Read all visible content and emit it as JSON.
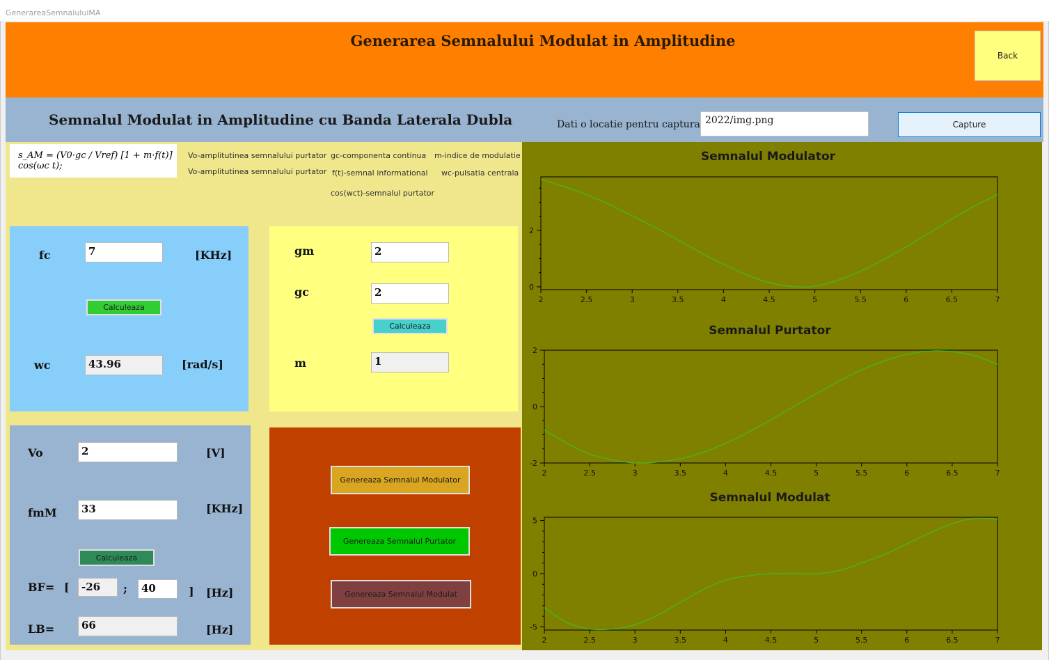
{
  "window": {
    "title": "GenerareaSemnaluluiMA"
  },
  "header": {
    "title": "Generarea Semnalului Modulat in Amplitudine",
    "back_label": "Back"
  },
  "subheader": {
    "title": "Semnalul Modulat in Amplitudine cu Banda Laterala Dubla",
    "capture_label": "Dati o locatie pentru captura",
    "capture_path": "2022/img.png",
    "capture_button": "Capture"
  },
  "formula": {
    "text": "s_AM = (V0·gc / Vref) [1 + m·f(t)] cos(ωc t);"
  },
  "legend": {
    "col1": [
      "Vo-amplitutinea semnalului purtator",
      "Vo-amplitutinea semnalului purtator"
    ],
    "col2": [
      "gc-componenta continua",
      "f(t)-semnal informational",
      "cos(wct)-semnalul purtator"
    ],
    "col3": [
      "m-indice de modulatie",
      "wc-pulsatia centrala"
    ]
  },
  "carrier_panel": {
    "fc_label": "fc",
    "fc_value": "7",
    "fc_unit": "[KHz]",
    "calc_label": "Calculeaza",
    "wc_label": "wc",
    "wc_value": "43.96",
    "wc_unit": "[rad/s]"
  },
  "mod_index_panel": {
    "gm_label": "gm",
    "gm_value": "2",
    "gc_label": "gc",
    "gc_value": "2",
    "calc_label": "Calculeaza",
    "m_label": "m",
    "m_value": "1"
  },
  "signal_panel": {
    "vo_label": "Vo",
    "vo_value": "2",
    "vo_unit": "[V]",
    "fmm_label": "fmM",
    "fmm_value": "33",
    "fmm_unit": "[KHz]",
    "calc_label": "Calculeaza",
    "bf_label": "BF=",
    "bf_open": "[",
    "bf_min": "-26",
    "bf_sep": ";",
    "bf_max": "40",
    "bf_close": "]",
    "bf_unit": "[Hz]",
    "lb_label": "LB=",
    "lb_value": "66",
    "lb_unit": "[Hz]"
  },
  "generate_panel": {
    "btn_modulator": "Genereaza Semnalul Modulator",
    "btn_purtator": "Genereaza Semnalul Purtator",
    "btn_modulat": "Genereaza Semnalul Modulat"
  },
  "colors": {
    "header": "#ff8000",
    "subbar": "#99b4d1",
    "left_bg": "#f0e68c",
    "plot_bg": "#808000",
    "line": "#4caf20",
    "btn_calc1": "#32cd32",
    "btn_calc2": "#48d1cc",
    "btn_calc3": "#2e8b57",
    "btn_gen1": "#daa520",
    "btn_gen2": "#00c800",
    "btn_gen3": "#804040"
  },
  "chart_data": [
    {
      "type": "line",
      "title": "Semnalul Modulator",
      "xlim": [
        2,
        7
      ],
      "ylim": [
        -0.1,
        3.9
      ],
      "xticks": [
        "2",
        "2.5",
        "3",
        "3.5",
        "4",
        "4.5",
        "5",
        "5.5",
        "6",
        "6.5",
        "7"
      ],
      "yticks": [
        {
          "v": 0,
          "l": "0"
        },
        {
          "v": 2,
          "l": "2"
        }
      ],
      "x": [
        2,
        2.25,
        2.5,
        2.75,
        3,
        3.25,
        3.5,
        3.75,
        4,
        4.25,
        4.5,
        4.75,
        5,
        5.25,
        5.5,
        5.75,
        6,
        6.25,
        6.5,
        6.75,
        7
      ],
      "y": [
        3.81,
        3.56,
        3.27,
        2.92,
        2.52,
        2.11,
        1.66,
        1.21,
        0.8,
        0.43,
        0.15,
        0.01,
        0.02,
        0.23,
        0.55,
        0.96,
        1.42,
        1.9,
        2.4,
        2.87,
        3.27
      ]
    },
    {
      "type": "line",
      "title": "Semnalul Purtator",
      "xlim": [
        2,
        7
      ],
      "ylim": [
        -2.0,
        2.0
      ],
      "xticks": [
        "2",
        "2.5",
        "3",
        "3.5",
        "4",
        "4.5",
        "5",
        "5.5",
        "6",
        "6.5",
        "7"
      ],
      "yticks": [
        {
          "v": -2,
          "l": "-2"
        },
        {
          "v": 0,
          "l": "0"
        },
        {
          "v": 2,
          "l": "2"
        }
      ],
      "x": [
        2,
        2.25,
        2.5,
        2.75,
        3,
        3.25,
        3.5,
        3.75,
        4,
        4.25,
        4.5,
        4.75,
        5,
        5.25,
        5.5,
        5.75,
        6,
        6.25,
        6.5,
        6.75,
        7
      ],
      "y": [
        -0.83,
        -1.3,
        -1.69,
        -1.89,
        -2.0,
        -1.97,
        -1.85,
        -1.62,
        -1.3,
        -0.91,
        -0.47,
        0.0,
        0.45,
        0.9,
        1.3,
        1.62,
        1.85,
        1.97,
        1.95,
        1.8,
        1.5
      ]
    },
    {
      "type": "line",
      "title": "Semnalul Modulat",
      "xlim": [
        2,
        7
      ],
      "ylim": [
        -5.3,
        5.3
      ],
      "xticks": [
        "2",
        "2.5",
        "3",
        "3.5",
        "4",
        "4.5",
        "5",
        "5.5",
        "6",
        "6.5",
        "7"
      ],
      "yticks": [
        {
          "v": -5,
          "l": "-5"
        },
        {
          "v": 0,
          "l": "0"
        },
        {
          "v": 5,
          "l": "5"
        }
      ],
      "x": [
        2,
        2.25,
        2.5,
        2.75,
        3,
        3.25,
        3.5,
        3.75,
        4,
        4.25,
        4.5,
        4.75,
        5,
        5.25,
        5.5,
        5.75,
        6,
        6.25,
        6.5,
        6.75,
        7
      ],
      "y": [
        -3.2,
        -4.6,
        -5.2,
        -5.2,
        -4.8,
        -3.9,
        -2.7,
        -1.5,
        -0.6,
        -0.2,
        0.0,
        0.0,
        0.0,
        0.3,
        1.0,
        1.8,
        2.8,
        3.8,
        4.7,
        5.2,
        5.1
      ]
    }
  ]
}
